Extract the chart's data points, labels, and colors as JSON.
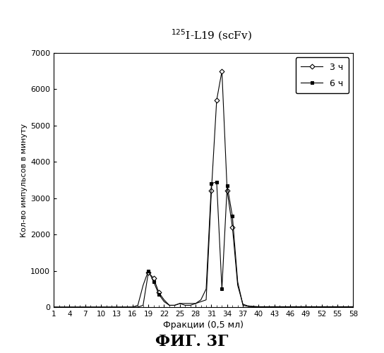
{
  "title": "$^{125}$I-L19 (scFv)",
  "xlabel": "Фракции (0,5 мл)",
  "ylabel": "Кол-во импульсов в минуту",
  "caption": "ФИГ. 3Г",
  "ylim": [
    0,
    7000
  ],
  "yticks": [
    0,
    1000,
    2000,
    3000,
    4000,
    5000,
    6000,
    7000
  ],
  "xticks": [
    1,
    4,
    7,
    10,
    13,
    16,
    19,
    22,
    25,
    28,
    31,
    34,
    37,
    40,
    43,
    46,
    49,
    52,
    55,
    58
  ],
  "legend_3h": "3 ч",
  "legend_6h": "6 ч",
  "fractions_3h": [
    1,
    2,
    3,
    4,
    5,
    6,
    7,
    8,
    9,
    10,
    11,
    12,
    13,
    14,
    15,
    16,
    17,
    18,
    19,
    20,
    21,
    22,
    23,
    24,
    25,
    26,
    27,
    28,
    29,
    30,
    31,
    32,
    33,
    34,
    35,
    36,
    37,
    38,
    39,
    40,
    41,
    42,
    43,
    44,
    45,
    46,
    47,
    48,
    49,
    50,
    51,
    52,
    53,
    54,
    55,
    56,
    57,
    58
  ],
  "values_3h": [
    0,
    0,
    0,
    0,
    0,
    0,
    0,
    0,
    0,
    0,
    0,
    0,
    0,
    0,
    0,
    0,
    0,
    50,
    950,
    800,
    400,
    200,
    50,
    50,
    100,
    100,
    100,
    100,
    150,
    200,
    3200,
    5700,
    6500,
    3200,
    2200,
    600,
    80,
    30,
    20,
    10,
    10,
    10,
    10,
    10,
    10,
    10,
    10,
    10,
    10,
    10,
    10,
    10,
    10,
    10,
    10,
    10,
    10,
    10
  ],
  "fractions_6h": [
    1,
    2,
    3,
    4,
    5,
    6,
    7,
    8,
    9,
    10,
    11,
    12,
    13,
    14,
    15,
    16,
    17,
    18,
    19,
    20,
    21,
    22,
    23,
    24,
    25,
    26,
    27,
    28,
    29,
    30,
    31,
    32,
    33,
    34,
    35,
    36,
    37,
    38,
    39,
    40,
    41,
    42,
    43,
    44,
    45,
    46,
    47,
    48,
    49,
    50,
    51,
    52,
    53,
    54,
    55,
    56,
    57,
    58
  ],
  "values_6h": [
    0,
    0,
    0,
    0,
    0,
    0,
    0,
    0,
    0,
    0,
    0,
    0,
    0,
    0,
    0,
    0,
    50,
    600,
    1000,
    700,
    350,
    150,
    50,
    50,
    100,
    50,
    50,
    100,
    200,
    500,
    3400,
    3450,
    500,
    3350,
    2500,
    700,
    50,
    20,
    10,
    10,
    10,
    10,
    10,
    10,
    10,
    10,
    10,
    10,
    10,
    10,
    10,
    10,
    10,
    10,
    10,
    10,
    10,
    10
  ],
  "marker_fractions_3h": [
    19,
    20,
    21,
    31,
    32,
    33,
    34,
    35
  ],
  "marker_fractions_6h": [
    19,
    20,
    21,
    31,
    32,
    33,
    34,
    35
  ],
  "line_color": "#000000",
  "bg_color": "#ffffff",
  "fig_caption_fontsize": 16
}
